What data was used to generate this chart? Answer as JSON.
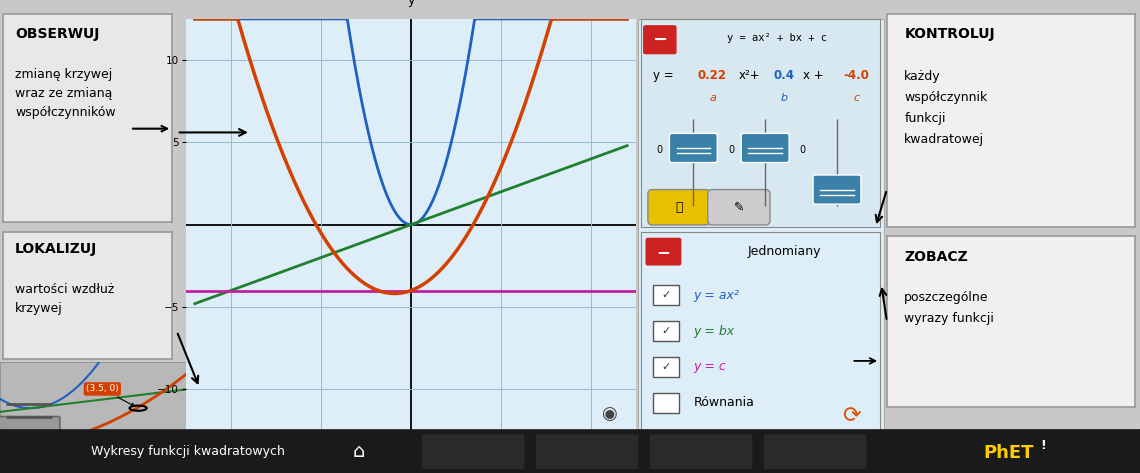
{
  "fig_width": 11.4,
  "fig_height": 4.73,
  "bg_color": "#c8c8c8",
  "graph_bg": "#ddeef8",
  "graph_grid_color": "#99bbcc",
  "panel_bg": "#ddeef8",
  "left_box_bg": "#e8e8e8",
  "right_box_bg": "#f0f0f0",
  "bottom_bar_color": "#1a1a1a",
  "obserwuj_title": "OBSERWUJ",
  "obserwuj_text": "zmianę krzywej\nwraz ze zmianą\nwspółczynników",
  "lokalizuj_title": "LOKALIZUJ",
  "lokalizuj_text": "wartości wzdłuż\nkrzywej",
  "kontroluj_title": "KONTROLUJ",
  "kontroluj_text": "każdy\nwspółczynnik\nfunkcji\nkwadratowej",
  "zobacz_title": "ZOBACZ",
  "zobacz_text": "poszczególne\nwyrazy funkcji",
  "equation": "y = ax² + bx + c",
  "a_val": "0.22",
  "b_val": "0.4",
  "c_val": "-4.0",
  "orange": "#d44000",
  "blue": "#2060c0",
  "green": "#208030",
  "magenta": "#c020a0",
  "slider_color": "#3a80a8",
  "bottom_text": "Wykresy funkcji kwadratowych",
  "phet_yellow": "#ffcc00",
  "point_label": "(3.5, 0)",
  "red_box": "#cc2222",
  "eq_bg": "#d8e8f0",
  "leg_bg": "#ddeef8"
}
